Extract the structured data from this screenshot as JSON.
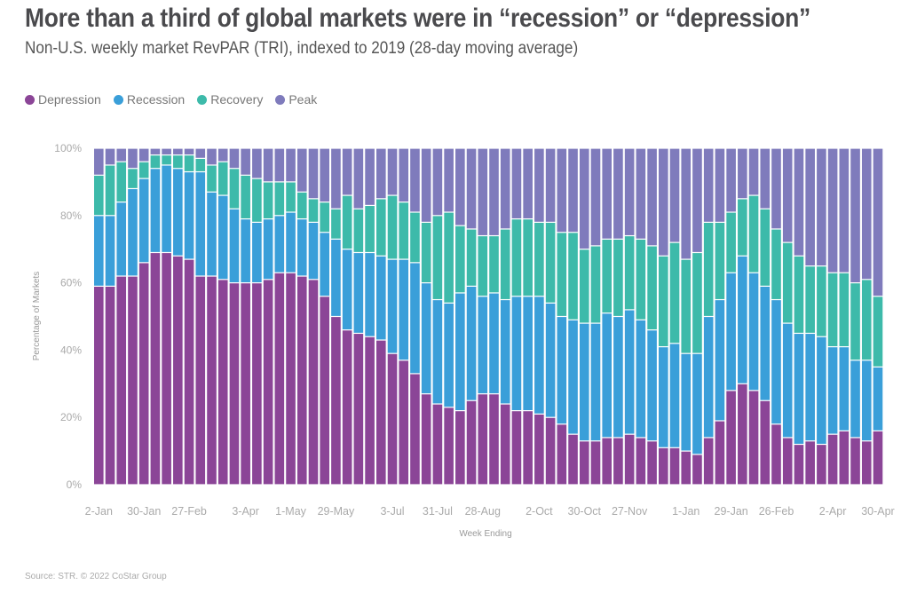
{
  "chart_data": {
    "type": "bar",
    "stacked": true,
    "title": "More than a third of global markets were in “recession” or “depression”",
    "subtitle": "Non-U.S. weekly market RevPAR (TRI), indexed to 2019 (28-day moving average)",
    "xlabel": "Week Ending",
    "ylabel": "Percentage of Markets",
    "ylim": [
      0,
      100
    ],
    "y_ticks": [
      "0%",
      "20%",
      "40%",
      "60%",
      "80%",
      "100%"
    ],
    "grid": false,
    "legend_position": "top-left",
    "source": "Source: STR. © 2022 CoStar Group",
    "categories": [
      "2-Jan",
      "9-Jan",
      "16-Jan",
      "23-Jan",
      "30-Jan",
      "6-Feb",
      "13-Feb",
      "20-Feb",
      "27-Feb",
      "6-Mar",
      "13-Mar",
      "20-Mar",
      "27-Mar",
      "3-Apr",
      "10-Apr",
      "17-Apr",
      "24-Apr",
      "1-May",
      "8-May",
      "15-May",
      "22-May",
      "29-May",
      "5-Jun",
      "12-Jun",
      "19-Jun",
      "26-Jun",
      "3-Jul",
      "10-Jul",
      "17-Jul",
      "24-Jul",
      "31-Jul",
      "7-Aug",
      "14-Aug",
      "21-Aug",
      "28-Aug",
      "4-Sep",
      "11-Sep",
      "18-Sep",
      "25-Sep",
      "2-Oct",
      "9-Oct",
      "16-Oct",
      "23-Oct",
      "30-Oct",
      "6-Nov",
      "13-Nov",
      "20-Nov",
      "27-Nov",
      "4-Dec",
      "11-Dec",
      "18-Dec",
      "25-Dec",
      "1-Jan",
      "8-Jan",
      "15-Jan",
      "22-Jan",
      "29-Jan",
      "5-Feb",
      "12-Feb",
      "19-Feb",
      "26-Feb",
      "5-Mar",
      "12-Mar",
      "19-Mar",
      "26-Mar",
      "2-Apr",
      "9-Apr",
      "16-Apr",
      "23-Apr",
      "30-Apr"
    ],
    "x_ticks": [
      "2-Jan",
      "30-Jan",
      "27-Feb",
      "3-Apr",
      "1-May",
      "29-May",
      "3-Jul",
      "31-Jul",
      "28-Aug",
      "2-Oct",
      "30-Oct",
      "27-Nov",
      "1-Jan",
      "29-Jan",
      "26-Feb",
      "2-Apr",
      "30-Apr"
    ],
    "series": [
      {
        "name": "Depression",
        "color": "#8B4597",
        "values": [
          59,
          59,
          62,
          62,
          66,
          69,
          69,
          68,
          67,
          62,
          62,
          61,
          60,
          60,
          60,
          61,
          63,
          63,
          62,
          61,
          56,
          50,
          46,
          45,
          44,
          43,
          39,
          37,
          33,
          27,
          24,
          23,
          22,
          25,
          27,
          27,
          24,
          22,
          22,
          21,
          20,
          18,
          15,
          13,
          13,
          14,
          14,
          15,
          14,
          13,
          11,
          11,
          10,
          9,
          14,
          19,
          28,
          30,
          28,
          25,
          18,
          14,
          12,
          13,
          12,
          15,
          16,
          14,
          13,
          16
        ]
      },
      {
        "name": "Recession",
        "color": "#3A9FD9",
        "values": [
          21,
          21,
          22,
          26,
          25,
          25,
          26,
          26,
          26,
          31,
          25,
          25,
          22,
          19,
          18,
          18,
          17,
          18,
          17,
          17,
          19,
          23,
          24,
          24,
          25,
          25,
          28,
          30,
          33,
          33,
          31,
          31,
          35,
          34,
          29,
          30,
          31,
          34,
          34,
          35,
          34,
          32,
          34,
          35,
          35,
          37,
          36,
          37,
          35,
          33,
          30,
          31,
          29,
          30,
          36,
          36,
          35,
          38,
          35,
          34,
          37,
          34,
          33,
          32,
          32,
          26,
          25,
          23,
          24,
          19
        ]
      },
      {
        "name": "Recovery",
        "color": "#3DBAAA",
        "values": [
          12,
          15,
          12,
          6,
          5,
          4,
          3,
          4,
          5,
          4,
          8,
          10,
          12,
          13,
          13,
          11,
          10,
          9,
          8,
          7,
          9,
          9,
          16,
          13,
          14,
          17,
          19,
          17,
          15,
          18,
          25,
          27,
          20,
          17,
          18,
          17,
          21,
          23,
          23,
          22,
          24,
          25,
          26,
          22,
          23,
          22,
          23,
          22,
          24,
          25,
          27,
          30,
          28,
          30,
          28,
          23,
          18,
          17,
          23,
          23,
          21,
          24,
          23,
          20,
          21,
          22,
          22,
          23,
          24,
          21
        ]
      },
      {
        "name": "Peak",
        "color": "#7F7BBC",
        "values": [
          8,
          5,
          4,
          6,
          4,
          2,
          2,
          2,
          2,
          3,
          5,
          4,
          6,
          8,
          9,
          10,
          10,
          10,
          13,
          15,
          16,
          18,
          14,
          18,
          17,
          15,
          14,
          16,
          19,
          22,
          20,
          19,
          23,
          24,
          26,
          26,
          24,
          21,
          21,
          22,
          22,
          25,
          25,
          30,
          29,
          27,
          27,
          26,
          27,
          29,
          32,
          28,
          33,
          31,
          22,
          22,
          19,
          15,
          14,
          18,
          24,
          28,
          32,
          35,
          35,
          37,
          37,
          40,
          39,
          44
        ]
      }
    ]
  }
}
